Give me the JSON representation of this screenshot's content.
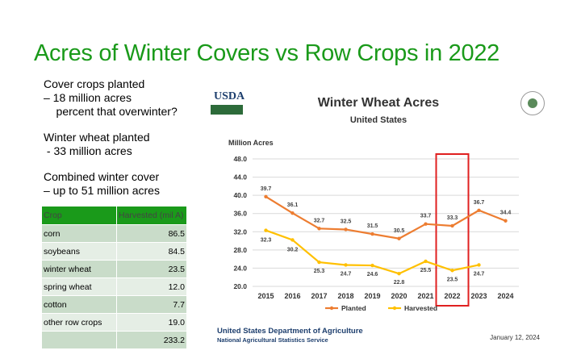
{
  "slide": {
    "title": "Acres of Winter Covers vs Row Crops in 2022",
    "notes": [
      "Cover crops planted",
      "– 18 million acres",
      "    percent that overwinter?",
      "",
      "Winter wheat planted",
      " - 33 million acres",
      "",
      "Combined winter cover",
      "– up to 51 million acres"
    ]
  },
  "table": {
    "headers": [
      "Crop",
      "Harvested (mil A)"
    ],
    "rows": [
      [
        "corn",
        "86.5"
      ],
      [
        "soybeans",
        "84.5"
      ],
      [
        "winter wheat",
        "23.5"
      ],
      [
        "spring wheat",
        "12.0"
      ],
      [
        "cotton",
        "7.7"
      ],
      [
        "other row crops",
        "19.0"
      ],
      [
        "",
        "233.2"
      ]
    ]
  },
  "chart_panel": {
    "logo_text": "USDA",
    "agency": "United States Department of Agriculture",
    "service": "National Agricultural Statistics Service",
    "date": "January 12, 2024"
  },
  "chart_data": {
    "type": "line",
    "title": "Winter Wheat Acres",
    "subtitle": "United States",
    "ylabel": "Million Acres",
    "xlabel": "",
    "x": [
      "2015",
      "2016",
      "2017",
      "2018",
      "2019",
      "2020",
      "2021",
      "2022",
      "2023",
      "2024"
    ],
    "yticks": [
      "48.0",
      "44.0",
      "40.0",
      "36.0",
      "32.0",
      "28.0",
      "24.0",
      "20.0"
    ],
    "ylim": [
      20,
      48
    ],
    "grid": true,
    "legend_position": "bottom",
    "highlight_category": "2022",
    "series": [
      {
        "name": "Planted",
        "color": "#ed7d31",
        "values": [
          39.7,
          36.1,
          32.7,
          32.5,
          31.5,
          30.5,
          33.7,
          33.3,
          36.7,
          34.4
        ],
        "labels": [
          "39.7",
          "36.1",
          "32.7",
          "32.5",
          "31.5",
          "30.5",
          "33.7",
          "33.3",
          "36.7",
          "34.4"
        ]
      },
      {
        "name": "Harvested",
        "color": "#ffc000",
        "values": [
          32.3,
          30.2,
          25.3,
          24.7,
          24.6,
          22.8,
          25.5,
          23.5,
          24.7,
          null
        ],
        "labels": [
          "32.3",
          "30.2",
          "25.3",
          "24.7",
          "24.6",
          "22.8",
          "25.5",
          "23.5",
          "24.7",
          ""
        ]
      }
    ],
    "colors": {
      "highlight": "#e02020",
      "grid": "#d9d9d9"
    }
  }
}
